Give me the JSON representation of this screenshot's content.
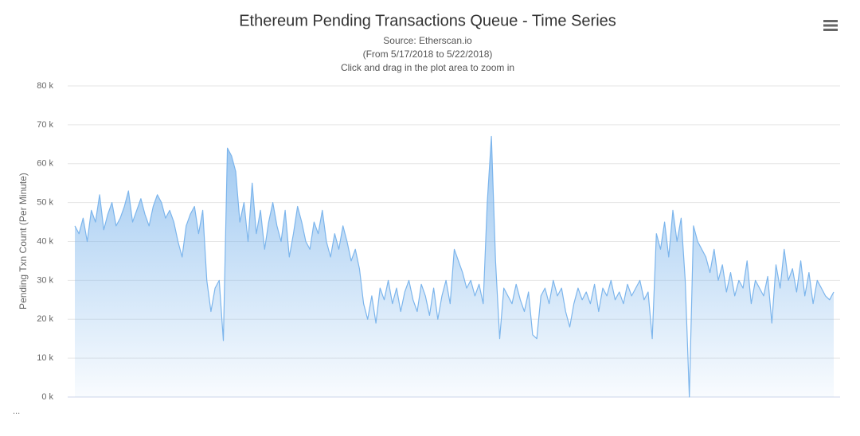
{
  "chart_data": {
    "type": "area",
    "title": "Ethereum Pending Transactions Queue - Time Series",
    "subtitle": [
      "Source: Etherscan.io",
      "(From 5/17/2018 to 5/22/2018)",
      "Click and drag in the plot area to zoom in"
    ],
    "y_label": "Pending Txn Count (Per Minute)",
    "footnote": "...",
    "color": "#7cb5ec",
    "grid": true,
    "ylim": [
      0,
      80000
    ],
    "yticks": [
      {
        "value": 0,
        "label": "0 k"
      },
      {
        "value": 10000,
        "label": "10 k"
      },
      {
        "value": 20000,
        "label": "20 k"
      },
      {
        "value": 30000,
        "label": "30 k"
      },
      {
        "value": 40000,
        "label": "40 k"
      },
      {
        "value": 50000,
        "label": "50 k"
      },
      {
        "value": 60000,
        "label": "60 k"
      },
      {
        "value": 70000,
        "label": "70 k"
      },
      {
        "value": 80000,
        "label": "80 k"
      }
    ],
    "values": [
      44000,
      42000,
      46000,
      40000,
      48000,
      45000,
      52000,
      43000,
      47000,
      50000,
      44000,
      46000,
      49000,
      53000,
      45000,
      48000,
      51000,
      47000,
      44000,
      49000,
      52000,
      50000,
      46000,
      48000,
      45000,
      40000,
      36000,
      44000,
      47000,
      49000,
      42000,
      48000,
      30000,
      22000,
      28000,
      30000,
      14500,
      64000,
      62000,
      58000,
      45000,
      50000,
      40000,
      55000,
      42000,
      48000,
      38000,
      45000,
      50000,
      44000,
      40000,
      48000,
      36000,
      42000,
      49000,
      45000,
      40000,
      38000,
      45000,
      42000,
      48000,
      40000,
      36000,
      42000,
      38000,
      44000,
      40000,
      35000,
      38000,
      33000,
      24000,
      20000,
      26000,
      19000,
      28000,
      25000,
      30000,
      24000,
      28000,
      22000,
      27000,
      30000,
      25000,
      22000,
      29000,
      26000,
      21000,
      28000,
      20000,
      26000,
      30000,
      24000,
      38000,
      35000,
      32000,
      28000,
      30000,
      26000,
      29000,
      24000,
      50000,
      67000,
      35000,
      15000,
      28000,
      26000,
      24000,
      29000,
      25000,
      22000,
      27000,
      16000,
      15000,
      26000,
      28000,
      24000,
      30000,
      26000,
      28000,
      22000,
      18000,
      24000,
      28000,
      25000,
      27000,
      24000,
      29000,
      22000,
      28000,
      26000,
      30000,
      25000,
      27000,
      24000,
      29000,
      26000,
      28000,
      30000,
      25000,
      27000,
      15000,
      42000,
      38000,
      45000,
      36000,
      48000,
      40000,
      46000,
      30000,
      0,
      44000,
      40000,
      38000,
      36000,
      32000,
      38000,
      30000,
      34000,
      27000,
      32000,
      26000,
      30000,
      28000,
      35000,
      24000,
      30000,
      28000,
      26000,
      31000,
      19000,
      34000,
      28000,
      38000,
      30000,
      33000,
      27000,
      35000,
      26000,
      32000,
      24000,
      30000,
      28000,
      26000,
      25000,
      27000
    ]
  }
}
